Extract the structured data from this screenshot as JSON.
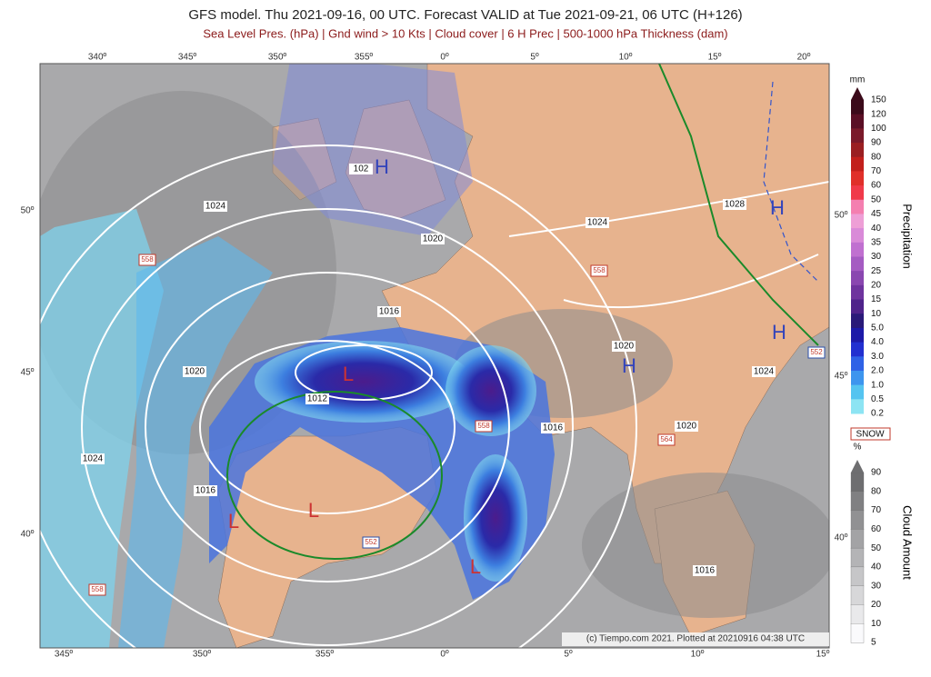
{
  "header": {
    "title": "GFS model. Thu 2021-09-16, 00 UTC. Forecast VALID at Tue 2021-09-21, 06 UTC (H+126)",
    "subtitle": "Sea Level Pres. (hPa) | Gnd wind > 10 Kts | Cloud cover | 6 H Prec | 500-1000 hPa Thickness (dam)"
  },
  "map": {
    "lon_top": [
      "340º",
      "345º",
      "350º",
      "355º",
      "0º",
      "5º",
      "10º",
      "15º",
      "20º"
    ],
    "lon_bottom": [
      "345º",
      "350º",
      "355º",
      "0º",
      "5º",
      "10º",
      "15º"
    ],
    "lat_left": [
      "50º",
      "45º",
      "40º"
    ],
    "lat_right": [
      "50º",
      "45º",
      "40º"
    ],
    "isobar_labels": [
      "1024",
      "1020",
      "1016",
      "1020",
      "1012",
      "1024",
      "1016",
      "1016",
      "1020",
      "1024",
      "1020",
      "1016",
      "1028",
      "1024",
      "102"
    ],
    "thickness_labels": [
      "558",
      "558",
      "558",
      "564",
      "552",
      "552",
      "558"
    ],
    "pressure_centers": [
      "H",
      "H",
      "H",
      "H",
      "L",
      "L",
      "L",
      "L"
    ],
    "credit": "(c) Tiempo.com 2021. Plotted at 20210916 04:38 UTC"
  },
  "legend": {
    "precip_unit": "mm",
    "precip_title": "Precipitation",
    "precip_ticks": [
      "150",
      "120",
      "100",
      "90",
      "80",
      "70",
      "60",
      "50",
      "45",
      "40",
      "35",
      "30",
      "25",
      "20",
      "15",
      "10",
      "5.0",
      "4.0",
      "3.0",
      "2.0",
      "1.0",
      "0.5",
      "0.2"
    ],
    "snow": "SNOW",
    "cloud_unit": "%",
    "cloud_title": "Cloud Amount",
    "cloud_ticks": [
      "90",
      "80",
      "70",
      "60",
      "50",
      "40",
      "30",
      "20",
      "10",
      "5"
    ]
  }
}
